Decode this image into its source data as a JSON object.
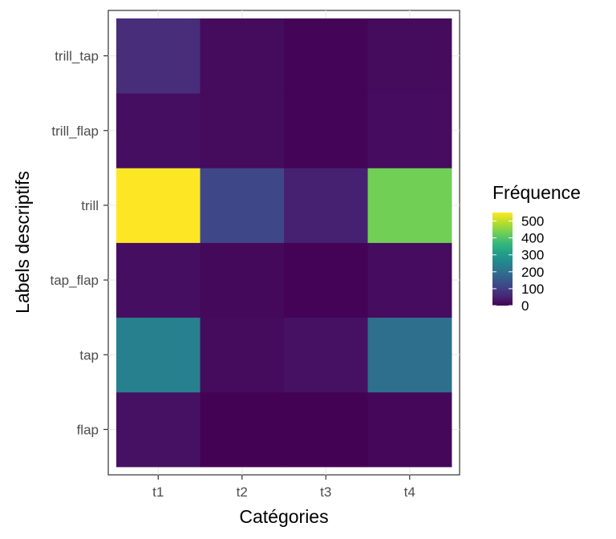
{
  "chart_data": {
    "type": "heatmap",
    "title": "",
    "xlabel": "Catégories",
    "ylabel": "Labels descriptifs",
    "x_categories": [
      "t1",
      "t2",
      "t3",
      "t4"
    ],
    "y_categories": [
      "flap",
      "tap",
      "tap_flap",
      "trill",
      "trill_flap",
      "trill_tap"
    ],
    "values": [
      [
        25,
        2,
        2,
        10
      ],
      [
        240,
        15,
        25,
        200
      ],
      [
        20,
        12,
        3,
        18
      ],
      [
        550,
        120,
        50,
        430
      ],
      [
        20,
        15,
        5,
        18
      ],
      [
        70,
        15,
        5,
        15
      ]
    ],
    "color_scale": "viridis",
    "color_range": [
      0,
      550
    ],
    "grid": true,
    "legend": {
      "title": "Fréquence",
      "position": "right",
      "ticks": [
        0,
        100,
        200,
        300,
        400,
        500
      ]
    }
  }
}
